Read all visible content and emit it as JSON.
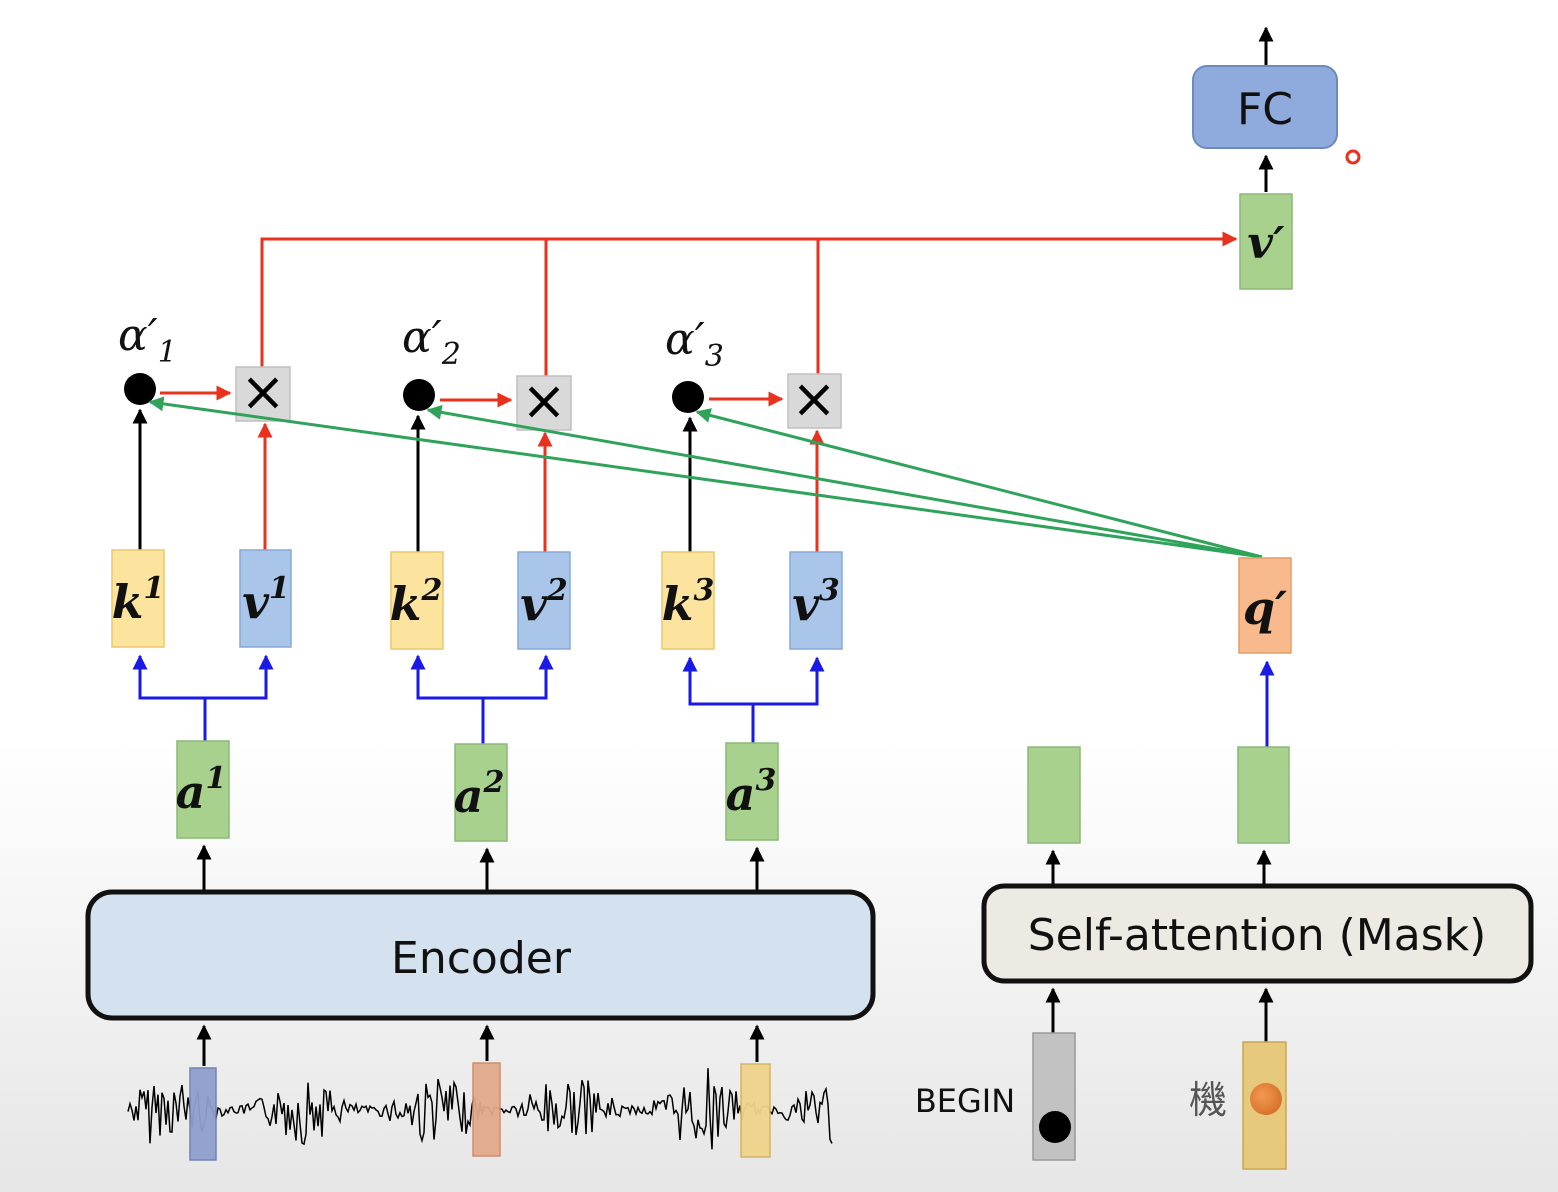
{
  "fc_label": "FC",
  "v_prime_label": "v′",
  "q_prime_label": "q′",
  "encoder_label": "Encoder",
  "self_attention_label": "Self-attention (Mask)",
  "begin_label": "BEGIN",
  "token_char": "機",
  "multiply_symbol": "×",
  "alphas": [
    "α′",
    "α′",
    "α′"
  ],
  "alpha_subscripts": [
    "1",
    "2",
    "3"
  ],
  "keys": [
    "k",
    "k",
    "k"
  ],
  "values": [
    "v",
    "v",
    "v"
  ],
  "inputs": [
    "a",
    "a",
    "a"
  ],
  "superscripts": [
    "1",
    "2",
    "3"
  ],
  "colors": {
    "key_fill": "#fde49e",
    "value_fill": "#a9c6ea",
    "input_fill": "#a9d18e",
    "query_fill": "#f8b98c",
    "fc_fill": "#8faadc",
    "red_line": "#e8321e",
    "green_line": "#2fa35a",
    "blue_line": "#1a1ae6",
    "encoder_fill": "#d3e2ee",
    "self_attention_fill": "#ede9e3"
  }
}
